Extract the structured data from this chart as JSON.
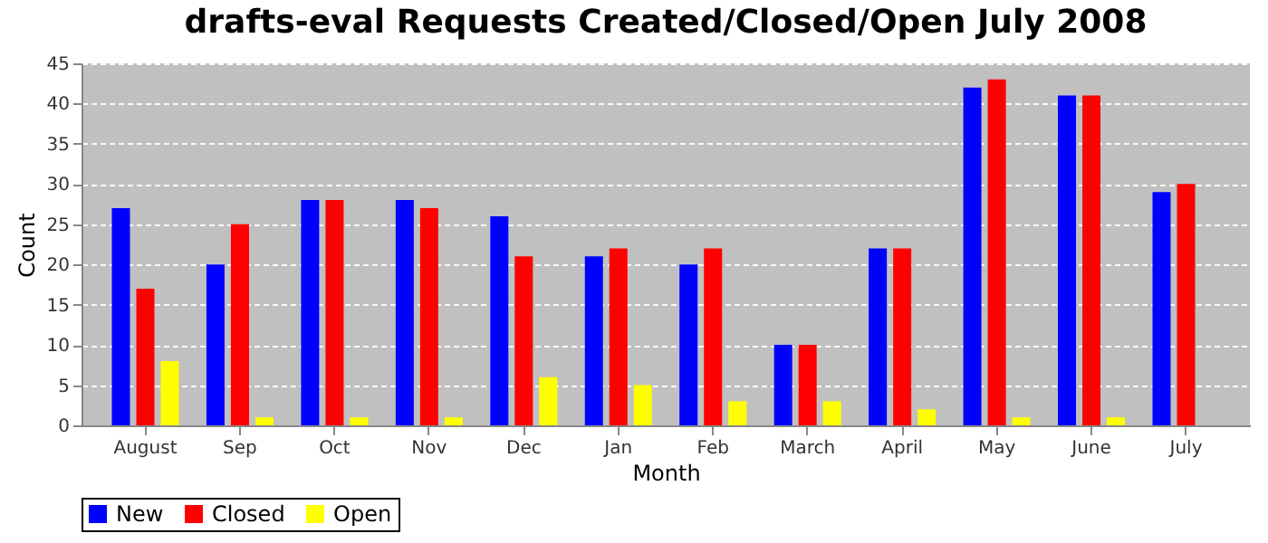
{
  "chart_data": {
    "type": "bar",
    "title": "drafts-eval Requests Created/Closed/Open July 2008",
    "xlabel": "Month",
    "ylabel": "Count",
    "categories": [
      "August",
      "Sep",
      "Oct",
      "Nov",
      "Dec",
      "Jan",
      "Feb",
      "March",
      "April",
      "May",
      "June",
      "July"
    ],
    "series": [
      {
        "name": "New",
        "color": "#0000ff",
        "values": [
          27,
          20,
          28,
          28,
          26,
          21,
          20,
          10,
          22,
          42,
          41,
          29
        ]
      },
      {
        "name": "Closed",
        "color": "#ff0000",
        "values": [
          17,
          25,
          28,
          27,
          21,
          22,
          22,
          10,
          22,
          43,
          41,
          30
        ]
      },
      {
        "name": "Open",
        "color": "#ffff00",
        "values": [
          8,
          1,
          1,
          1,
          6,
          5,
          3,
          3,
          2,
          1,
          1,
          0
        ]
      }
    ],
    "ylim": [
      0,
      45
    ],
    "yticks": [
      0,
      5,
      10,
      15,
      20,
      25,
      30,
      35,
      40,
      45
    ],
    "grid": "y",
    "legend": "bottom"
  }
}
